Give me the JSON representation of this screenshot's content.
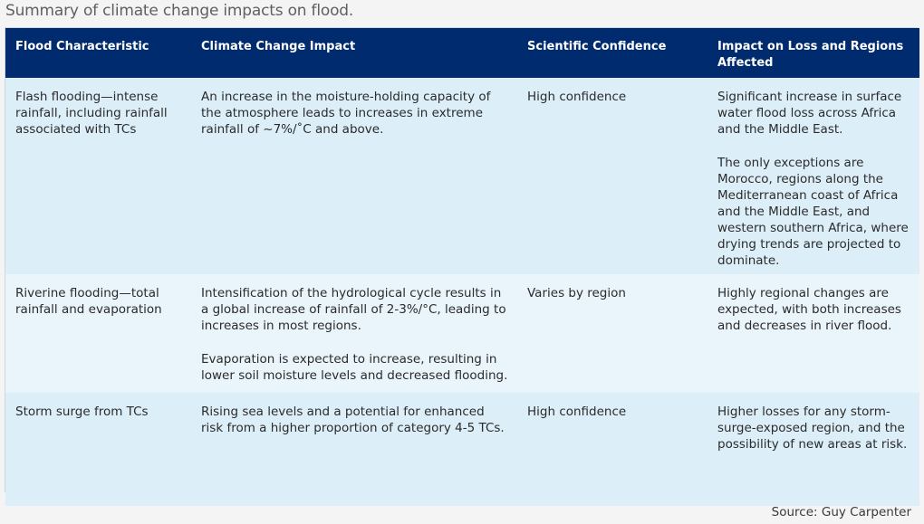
{
  "title": "Summary of climate change impacts on flood.",
  "table": {
    "headers": [
      "Flood Characteristic",
      "Climate Change Impact",
      "Scientific Confidence",
      "Impact on Loss and Regions Affected"
    ],
    "rows": [
      {
        "characteristic": "Flash flooding—intense rainfall, including rainfall associated with TCs",
        "impact": [
          "An increase in the moisture-holding capacity of the atmosphere leads to increases in extreme rainfall of ~7%/˚C and above."
        ],
        "confidence": "High confidence",
        "loss": [
          "Significant increase in surface water flood loss across Africa and the Middle East.",
          "The only exceptions are Morocco, regions along the Mediterranean coast of Africa and the Middle East, and western southern Africa, where drying trends are projected to dominate."
        ]
      },
      {
        "characteristic": "Riverine flooding—total rainfall and evaporation",
        "impact": [
          "Intensification of the hydrological cycle results in a global increase of rainfall of 2-3%/°C, leading to increases in most regions.",
          "Evaporation is expected to increase, resulting in lower soil moisture levels and decreased flooding."
        ],
        "confidence": "Varies by region",
        "loss": [
          "Highly regional changes are expected, with both increases and decreases in river flood."
        ]
      },
      {
        "characteristic": "Storm surge from TCs",
        "impact": [
          "Rising sea levels and a potential for enhanced risk from a higher proportion of category 4-5 TCs."
        ],
        "confidence": "High confidence",
        "loss": [
          "Higher losses for any storm-surge-exposed region, and the possibility of new areas at risk."
        ]
      }
    ]
  },
  "source": "Source: Guy Carpenter",
  "colors": {
    "header_bg": "#002b6e",
    "row_bg": "#dceef8",
    "row_alt_bg": "#e9f4fb"
  }
}
